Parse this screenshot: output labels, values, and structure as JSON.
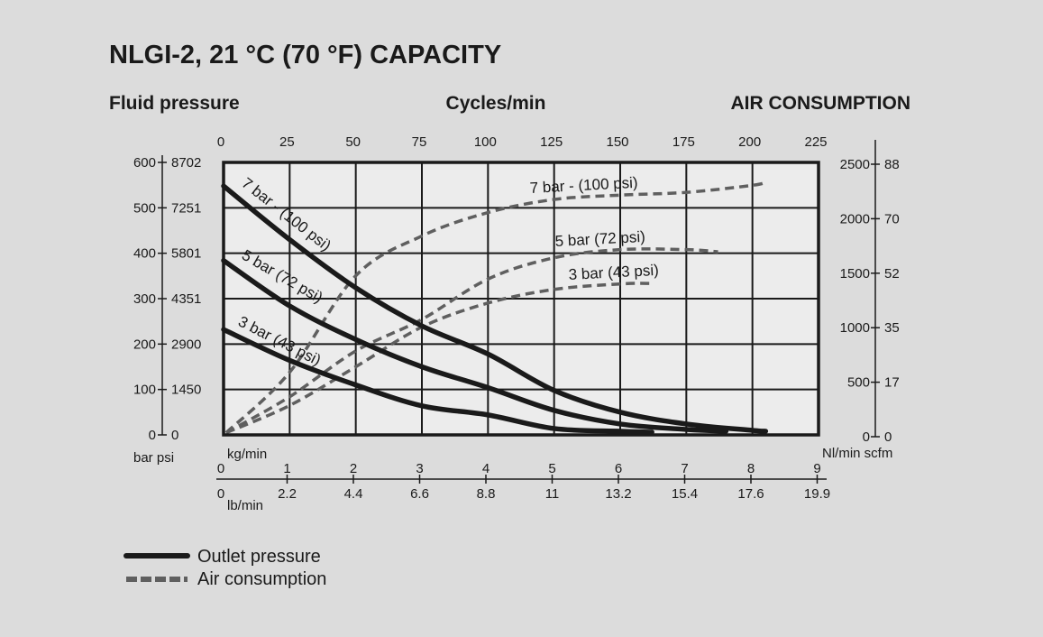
{
  "chart_data": {
    "type": "line",
    "title": "NLGI-2, 21 °C (70 °F) CAPACITY",
    "headers": {
      "left": "Fluid pressure",
      "center": "Cycles/min",
      "right": "AIR CONSUMPTION"
    },
    "x_top": {
      "label": "Cycles/min",
      "range": [
        0,
        225
      ],
      "ticks": [
        "0",
        "25",
        "50",
        "75",
        "100",
        "125",
        "150",
        "175",
        "200",
        "225"
      ]
    },
    "x_bottom_kg": {
      "label": "kg/min",
      "range": [
        0,
        9
      ],
      "ticks": [
        "0",
        "1",
        "2",
        "3",
        "4",
        "5",
        "6",
        "7",
        "8",
        "9"
      ]
    },
    "x_bottom_lb": {
      "label": "lb/min",
      "ticks": [
        "0",
        "2.2",
        "4.4",
        "6.6",
        "8.8",
        "11",
        "13.2",
        "15.4",
        "17.6",
        "19.9"
      ]
    },
    "y_left": {
      "unit_label": "bar psi",
      "range": [
        0,
        600
      ],
      "bar_ticks": [
        "600",
        "500",
        "400",
        "300",
        "200",
        "100",
        "0"
      ],
      "psi_ticks": [
        "8702",
        "7251",
        "5801",
        "4351",
        "2900",
        "1450",
        "0"
      ]
    },
    "y_right": {
      "unit_label": "Nl/min scfm",
      "range": [
        0,
        2500
      ],
      "nl_ticks": [
        "2500",
        "2000",
        "1500",
        "1000",
        "500",
        "0"
      ],
      "scfm_ticks": [
        "88",
        "70",
        "52",
        "35",
        "17",
        "0"
      ]
    },
    "grid": true,
    "legend": {
      "position": "bottom-left",
      "items": [
        {
          "label": "Outlet pressure",
          "style": "solid"
        },
        {
          "label": "Air consumption",
          "style": "dashed"
        }
      ]
    },
    "colors": {
      "background": "#dcdcdc",
      "plot": "#ececec",
      "outlet": "#1a1a1a",
      "air": "#5f5f5f"
    },
    "outlet_pressure_series": [
      {
        "name": "7 bar - (100 psi)",
        "x": [
          0,
          25,
          50,
          75,
          100,
          125,
          150,
          175,
          200,
          205
        ],
        "y": [
          548,
          430,
          324,
          240,
          178,
          98,
          50,
          24,
          10,
          8
        ]
      },
      {
        "name": "5 bar (72 psi)",
        "x": [
          0,
          25,
          50,
          75,
          100,
          125,
          150,
          175,
          190
        ],
        "y": [
          384,
          284,
          210,
          150,
          104,
          54,
          24,
          12,
          8
        ]
      },
      {
        "name": "3 bar (43 psi)",
        "x": [
          0,
          25,
          50,
          75,
          100,
          125,
          150,
          162
        ],
        "y": [
          232,
          164,
          110,
          64,
          44,
          14,
          8,
          6
        ]
      }
    ],
    "air_consumption_series": [
      {
        "name": "7 bar - (100 psi)",
        "x": [
          1,
          25,
          50,
          75,
          100,
          125,
          150,
          175,
          200,
          205
        ],
        "y": [
          20,
          575,
          1460,
          1825,
          2040,
          2160,
          2200,
          2225,
          2290,
          2320
        ]
      },
      {
        "name": "5 bar (72 psi)",
        "x": [
          1,
          25,
          50,
          75,
          100,
          125,
          150,
          175,
          187
        ],
        "y": [
          20,
          350,
          770,
          1060,
          1430,
          1625,
          1700,
          1700,
          1680
        ]
      },
      {
        "name": "3 bar (43 psi)",
        "x": [
          1,
          25,
          50,
          75,
          100,
          125,
          150,
          162
        ],
        "y": [
          20,
          270,
          625,
          990,
          1210,
          1335,
          1385,
          1390
        ]
      }
    ]
  }
}
